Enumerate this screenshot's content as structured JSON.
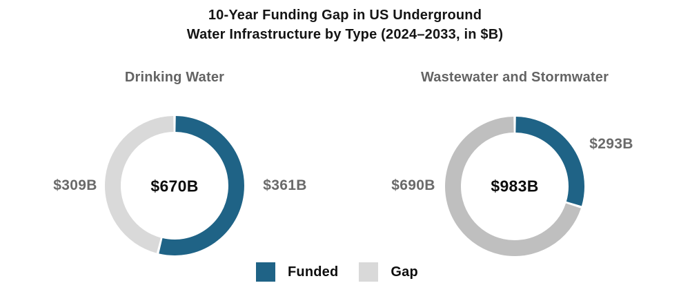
{
  "title": "10-Year Funding Gap in US Underground\nWater Infrastructure by Type (2024–2033, in $B)",
  "legend": {
    "funded_label": "Funded",
    "gap_label": "Gap",
    "funded_color": "#1f6386",
    "gap_color": "#d9d9d9"
  },
  "chart_data": [
    {
      "type": "pie",
      "variant": "donut",
      "title": "Drinking Water",
      "center_label": "$670B",
      "total": 670,
      "units": "$B",
      "start_angle_deg": 0,
      "direction": "clockwise",
      "slices": [
        {
          "name": "Funded",
          "value": 361,
          "label": "$361B",
          "color": "#1f6386"
        },
        {
          "name": "Gap",
          "value": 309,
          "label": "$309B",
          "color": "#d9d9d9"
        }
      ]
    },
    {
      "type": "pie",
      "variant": "donut",
      "title": "Wastewater and Stormwater",
      "center_label": "$983B",
      "total": 983,
      "units": "$B",
      "start_angle_deg": 0,
      "direction": "clockwise",
      "slices": [
        {
          "name": "Funded",
          "value": 293,
          "label": "$293B",
          "color": "#1f6386"
        },
        {
          "name": "Gap",
          "value": 690,
          "label": "$690B",
          "color": "#bfbfbf"
        }
      ]
    }
  ]
}
